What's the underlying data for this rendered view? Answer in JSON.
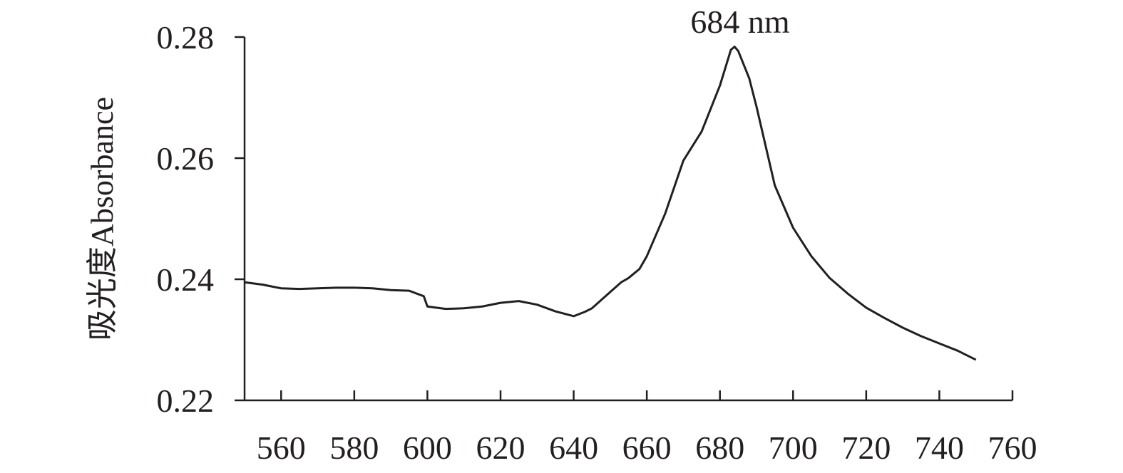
{
  "chart_data": {
    "type": "line",
    "y_label": "吸光度Absorbance",
    "annotation": "684 nm",
    "x": [
      550,
      555,
      560,
      565,
      570,
      575,
      580,
      585,
      590,
      595,
      599,
      600,
      605,
      610,
      615,
      620,
      625,
      630,
      635,
      640,
      643,
      645,
      650,
      653,
      655,
      658,
      660,
      665,
      670,
      675,
      680,
      683,
      684,
      685,
      688,
      690,
      695,
      700,
      705,
      710,
      715,
      720,
      725,
      730,
      735,
      740,
      745,
      750
    ],
    "series": [
      {
        "color": "#231f20",
        "values": [
          0.2395,
          0.2391,
          0.2385,
          0.2384,
          0.2385,
          0.2386,
          0.2386,
          0.2385,
          0.2382,
          0.2381,
          0.2372,
          0.2355,
          0.2351,
          0.2352,
          0.2355,
          0.2361,
          0.2364,
          0.2358,
          0.2347,
          0.2339,
          0.2346,
          0.2352,
          0.2379,
          0.2395,
          0.2402,
          0.2417,
          0.2438,
          0.2508,
          0.2596,
          0.2644,
          0.272,
          0.2779,
          0.2784,
          0.2777,
          0.2732,
          0.2685,
          0.2555,
          0.2485,
          0.2438,
          0.2402,
          0.2376,
          0.2353,
          0.2336,
          0.232,
          0.2306,
          0.2294,
          0.2282,
          0.2267
        ]
      }
    ],
    "xlim": [
      550,
      760
    ],
    "xticks": [
      560,
      580,
      600,
      620,
      640,
      660,
      680,
      700,
      720,
      740,
      760
    ],
    "ylim": [
      0.22,
      0.28
    ],
    "yticks": [
      0.22,
      0.24,
      0.26,
      0.28
    ],
    "grid": false
  }
}
